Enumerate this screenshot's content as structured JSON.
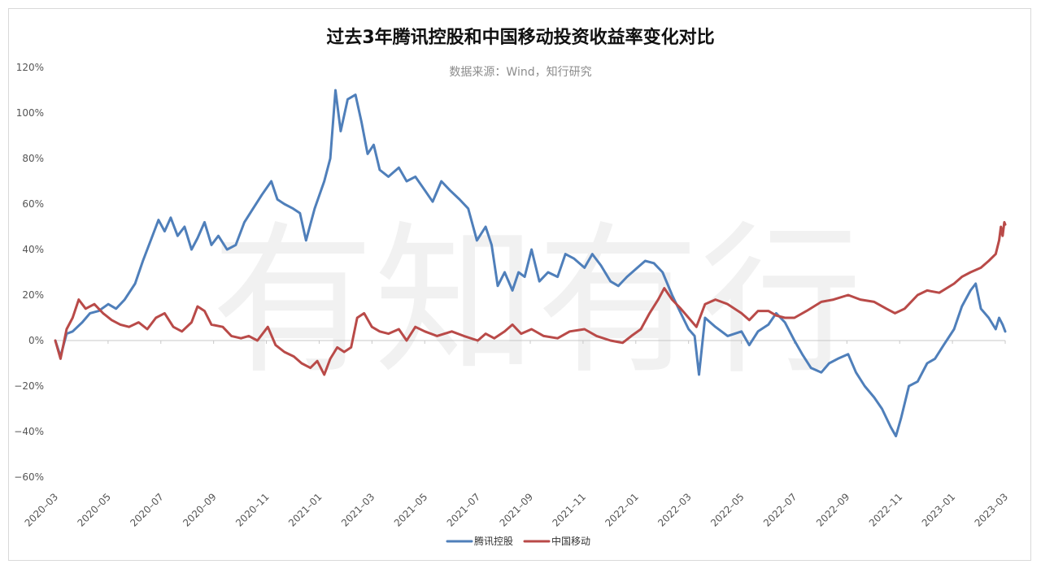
{
  "chart_data": {
    "type": "line",
    "title": "过去3年腾讯控股和中国移动投资收益率变化对比",
    "subtitle": "数据来源：Wind，知行研究",
    "watermark": "有知有行",
    "ylim": [
      -0.6,
      1.2
    ],
    "y_ticks": [
      "120%",
      "100%",
      "80%",
      "60%",
      "40%",
      "20%",
      "0%",
      "−20%",
      "−40%",
      "−60%"
    ],
    "x_ticks": [
      "2020–03",
      "2020–05",
      "2020–07",
      "2020–09",
      "2020–11",
      "2021–01",
      "2021–03",
      "2021–05",
      "2021–07",
      "2021–09",
      "2021–11",
      "2022–01",
      "2022–03",
      "2022–05",
      "2022–07",
      "2022–09",
      "2022–11",
      "2023–01",
      "2023–03"
    ],
    "x_range": [
      "2020-03-01",
      "2023-03-01"
    ],
    "grid": false,
    "legend_position": "bottom-center",
    "series": [
      {
        "name": "腾讯控股",
        "color": "#4f7fba",
        "points": [
          [
            "2020-03-01",
            0.0
          ],
          [
            "2020-03-07",
            -0.07
          ],
          [
            "2020-03-14",
            0.03
          ],
          [
            "2020-03-21",
            0.04
          ],
          [
            "2020-04-01",
            0.08
          ],
          [
            "2020-04-10",
            0.12
          ],
          [
            "2020-04-20",
            0.13
          ],
          [
            "2020-05-01",
            0.16
          ],
          [
            "2020-05-10",
            0.14
          ],
          [
            "2020-05-20",
            0.18
          ],
          [
            "2020-06-01",
            0.25
          ],
          [
            "2020-06-10",
            0.35
          ],
          [
            "2020-06-20",
            0.45
          ],
          [
            "2020-06-28",
            0.53
          ],
          [
            "2020-07-05",
            0.48
          ],
          [
            "2020-07-12",
            0.54
          ],
          [
            "2020-07-20",
            0.46
          ],
          [
            "2020-07-28",
            0.5
          ],
          [
            "2020-08-05",
            0.4
          ],
          [
            "2020-08-12",
            0.45
          ],
          [
            "2020-08-20",
            0.52
          ],
          [
            "2020-08-28",
            0.42
          ],
          [
            "2020-09-05",
            0.46
          ],
          [
            "2020-09-15",
            0.4
          ],
          [
            "2020-09-25",
            0.42
          ],
          [
            "2020-10-05",
            0.52
          ],
          [
            "2020-10-15",
            0.58
          ],
          [
            "2020-10-25",
            0.64
          ],
          [
            "2020-11-05",
            0.7
          ],
          [
            "2020-11-12",
            0.62
          ],
          [
            "2020-11-20",
            0.6
          ],
          [
            "2020-11-30",
            0.58
          ],
          [
            "2020-12-08",
            0.56
          ],
          [
            "2020-12-15",
            0.44
          ],
          [
            "2020-12-25",
            0.58
          ],
          [
            "2021-01-05",
            0.7
          ],
          [
            "2021-01-12",
            0.8
          ],
          [
            "2021-01-18",
            1.1
          ],
          [
            "2021-01-24",
            0.92
          ],
          [
            "2021-02-01",
            1.06
          ],
          [
            "2021-02-10",
            1.08
          ],
          [
            "2021-02-17",
            0.96
          ],
          [
            "2021-02-24",
            0.82
          ],
          [
            "2021-03-03",
            0.86
          ],
          [
            "2021-03-10",
            0.75
          ],
          [
            "2021-03-20",
            0.72
          ],
          [
            "2021-04-01",
            0.76
          ],
          [
            "2021-04-10",
            0.7
          ],
          [
            "2021-04-20",
            0.72
          ],
          [
            "2021-05-01",
            0.66
          ],
          [
            "2021-05-10",
            0.61
          ],
          [
            "2021-05-20",
            0.7
          ],
          [
            "2021-05-30",
            0.66
          ],
          [
            "2021-06-10",
            0.62
          ],
          [
            "2021-06-20",
            0.58
          ],
          [
            "2021-06-30",
            0.44
          ],
          [
            "2021-07-10",
            0.5
          ],
          [
            "2021-07-17",
            0.42
          ],
          [
            "2021-07-24",
            0.24
          ],
          [
            "2021-08-01",
            0.3
          ],
          [
            "2021-08-10",
            0.22
          ],
          [
            "2021-08-17",
            0.3
          ],
          [
            "2021-08-24",
            0.28
          ],
          [
            "2021-09-01",
            0.4
          ],
          [
            "2021-09-10",
            0.26
          ],
          [
            "2021-09-20",
            0.3
          ],
          [
            "2021-10-01",
            0.28
          ],
          [
            "2021-10-10",
            0.38
          ],
          [
            "2021-10-20",
            0.36
          ],
          [
            "2021-11-01",
            0.32
          ],
          [
            "2021-11-10",
            0.38
          ],
          [
            "2021-11-20",
            0.33
          ],
          [
            "2021-12-01",
            0.26
          ],
          [
            "2021-12-10",
            0.24
          ],
          [
            "2021-12-20",
            0.28
          ],
          [
            "2022-01-01",
            0.32
          ],
          [
            "2022-01-10",
            0.35
          ],
          [
            "2022-01-20",
            0.34
          ],
          [
            "2022-01-30",
            0.3
          ],
          [
            "2022-02-10",
            0.2
          ],
          [
            "2022-02-20",
            0.12
          ],
          [
            "2022-03-01",
            0.05
          ],
          [
            "2022-03-08",
            0.02
          ],
          [
            "2022-03-13",
            -0.15
          ],
          [
            "2022-03-20",
            0.1
          ],
          [
            "2022-04-01",
            0.06
          ],
          [
            "2022-04-15",
            0.02
          ],
          [
            "2022-05-01",
            0.04
          ],
          [
            "2022-05-10",
            -0.02
          ],
          [
            "2022-05-20",
            0.04
          ],
          [
            "2022-06-01",
            0.07
          ],
          [
            "2022-06-10",
            0.12
          ],
          [
            "2022-06-20",
            0.08
          ],
          [
            "2022-07-01",
            0.0
          ],
          [
            "2022-07-10",
            -0.06
          ],
          [
            "2022-07-20",
            -0.12
          ],
          [
            "2022-08-01",
            -0.14
          ],
          [
            "2022-08-10",
            -0.1
          ],
          [
            "2022-08-20",
            -0.08
          ],
          [
            "2022-09-01",
            -0.06
          ],
          [
            "2022-09-10",
            -0.14
          ],
          [
            "2022-09-20",
            -0.2
          ],
          [
            "2022-10-01",
            -0.25
          ],
          [
            "2022-10-10",
            -0.3
          ],
          [
            "2022-10-20",
            -0.38
          ],
          [
            "2022-10-26",
            -0.42
          ],
          [
            "2022-11-01",
            -0.34
          ],
          [
            "2022-11-10",
            -0.2
          ],
          [
            "2022-11-20",
            -0.18
          ],
          [
            "2022-12-01",
            -0.1
          ],
          [
            "2022-12-10",
            -0.08
          ],
          [
            "2022-12-20",
            -0.02
          ],
          [
            "2023-01-01",
            0.05
          ],
          [
            "2023-01-10",
            0.15
          ],
          [
            "2023-01-20",
            0.22
          ],
          [
            "2023-01-26",
            0.25
          ],
          [
            "2023-02-01",
            0.14
          ],
          [
            "2023-02-10",
            0.1
          ],
          [
            "2023-02-18",
            0.05
          ],
          [
            "2023-02-22",
            0.1
          ],
          [
            "2023-02-26",
            0.07
          ],
          [
            "2023-03-01",
            0.04
          ]
        ]
      },
      {
        "name": "中国移动",
        "color": "#b94a48",
        "points": [
          [
            "2020-03-01",
            0.0
          ],
          [
            "2020-03-07",
            -0.08
          ],
          [
            "2020-03-14",
            0.05
          ],
          [
            "2020-03-21",
            0.1
          ],
          [
            "2020-03-28",
            0.18
          ],
          [
            "2020-04-05",
            0.14
          ],
          [
            "2020-04-15",
            0.16
          ],
          [
            "2020-04-25",
            0.12
          ],
          [
            "2020-05-05",
            0.09
          ],
          [
            "2020-05-15",
            0.07
          ],
          [
            "2020-05-25",
            0.06
          ],
          [
            "2020-06-05",
            0.08
          ],
          [
            "2020-06-15",
            0.05
          ],
          [
            "2020-06-25",
            0.1
          ],
          [
            "2020-07-05",
            0.12
          ],
          [
            "2020-07-15",
            0.06
          ],
          [
            "2020-07-25",
            0.04
          ],
          [
            "2020-08-05",
            0.08
          ],
          [
            "2020-08-12",
            0.15
          ],
          [
            "2020-08-20",
            0.13
          ],
          [
            "2020-08-28",
            0.07
          ],
          [
            "2020-09-10",
            0.06
          ],
          [
            "2020-09-20",
            0.02
          ],
          [
            "2020-10-01",
            0.01
          ],
          [
            "2020-10-10",
            0.02
          ],
          [
            "2020-10-20",
            0.0
          ],
          [
            "2020-11-01",
            0.06
          ],
          [
            "2020-11-10",
            -0.02
          ],
          [
            "2020-11-20",
            -0.05
          ],
          [
            "2020-12-01",
            -0.07
          ],
          [
            "2020-12-10",
            -0.1
          ],
          [
            "2020-12-20",
            -0.12
          ],
          [
            "2020-12-28",
            -0.09
          ],
          [
            "2021-01-05",
            -0.15
          ],
          [
            "2021-01-12",
            -0.08
          ],
          [
            "2021-01-20",
            -0.03
          ],
          [
            "2021-01-28",
            -0.05
          ],
          [
            "2021-02-05",
            -0.03
          ],
          [
            "2021-02-12",
            0.1
          ],
          [
            "2021-02-20",
            0.12
          ],
          [
            "2021-03-01",
            0.06
          ],
          [
            "2021-03-10",
            0.04
          ],
          [
            "2021-03-20",
            0.03
          ],
          [
            "2021-04-01",
            0.05
          ],
          [
            "2021-04-10",
            0.0
          ],
          [
            "2021-04-20",
            0.06
          ],
          [
            "2021-05-01",
            0.04
          ],
          [
            "2021-05-15",
            0.02
          ],
          [
            "2021-06-01",
            0.04
          ],
          [
            "2021-06-15",
            0.02
          ],
          [
            "2021-07-01",
            0.0
          ],
          [
            "2021-07-10",
            0.03
          ],
          [
            "2021-07-20",
            0.01
          ],
          [
            "2021-08-01",
            0.04
          ],
          [
            "2021-08-10",
            0.07
          ],
          [
            "2021-08-20",
            0.03
          ],
          [
            "2021-09-01",
            0.05
          ],
          [
            "2021-09-15",
            0.02
          ],
          [
            "2021-10-01",
            0.01
          ],
          [
            "2021-10-15",
            0.04
          ],
          [
            "2021-11-01",
            0.05
          ],
          [
            "2021-11-15",
            0.02
          ],
          [
            "2021-12-01",
            0.0
          ],
          [
            "2021-12-15",
            -0.01
          ],
          [
            "2021-12-25",
            0.02
          ],
          [
            "2022-01-05",
            0.05
          ],
          [
            "2022-01-15",
            0.12
          ],
          [
            "2022-01-25",
            0.18
          ],
          [
            "2022-02-01",
            0.23
          ],
          [
            "2022-02-10",
            0.18
          ],
          [
            "2022-02-20",
            0.14
          ],
          [
            "2022-03-01",
            0.1
          ],
          [
            "2022-03-10",
            0.06
          ],
          [
            "2022-03-20",
            0.16
          ],
          [
            "2022-04-01",
            0.18
          ],
          [
            "2022-04-15",
            0.16
          ],
          [
            "2022-05-01",
            0.12
          ],
          [
            "2022-05-10",
            0.09
          ],
          [
            "2022-05-20",
            0.13
          ],
          [
            "2022-06-01",
            0.13
          ],
          [
            "2022-06-10",
            0.11
          ],
          [
            "2022-06-20",
            0.1
          ],
          [
            "2022-07-01",
            0.1
          ],
          [
            "2022-07-15",
            0.13
          ],
          [
            "2022-08-01",
            0.17
          ],
          [
            "2022-08-15",
            0.18
          ],
          [
            "2022-09-01",
            0.2
          ],
          [
            "2022-09-15",
            0.18
          ],
          [
            "2022-10-01",
            0.17
          ],
          [
            "2022-10-15",
            0.14
          ],
          [
            "2022-10-25",
            0.12
          ],
          [
            "2022-11-05",
            0.14
          ],
          [
            "2022-11-20",
            0.2
          ],
          [
            "2022-12-01",
            0.22
          ],
          [
            "2022-12-15",
            0.21
          ],
          [
            "2023-01-01",
            0.25
          ],
          [
            "2023-01-10",
            0.28
          ],
          [
            "2023-01-20",
            0.3
          ],
          [
            "2023-02-01",
            0.32
          ],
          [
            "2023-02-10",
            0.35
          ],
          [
            "2023-02-18",
            0.38
          ],
          [
            "2023-02-22",
            0.44
          ],
          [
            "2023-02-24",
            0.5
          ],
          [
            "2023-02-26",
            0.46
          ],
          [
            "2023-02-28",
            0.52
          ],
          [
            "2023-03-01",
            0.51
          ]
        ]
      }
    ]
  }
}
